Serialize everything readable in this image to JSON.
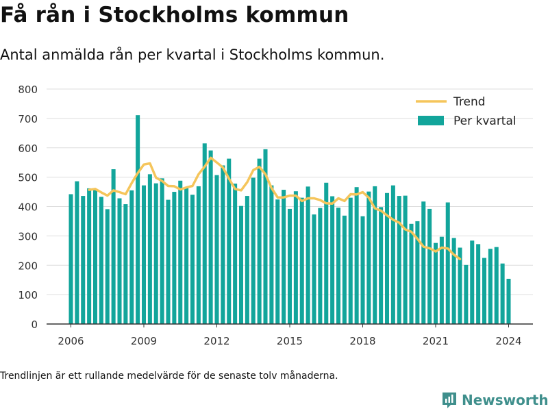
{
  "title": "Få rån i Stockholms kommun",
  "subtitle": "Antal anmälda rån per kvartal i Stockholms kommun.",
  "footnote": "Trendlinjen är ett rullande medelvärde för de senaste tolv månaderna.",
  "brand": {
    "name": "Newsworthy",
    "icon": "newsworthy-logo-icon"
  },
  "colors": {
    "bar": "#12a59b",
    "trend": "#f5c55b",
    "grid": "#dddddd",
    "axis": "#333333"
  },
  "chart_data": {
    "type": "bar",
    "xlim": [
      2005,
      2025
    ],
    "ylim": [
      0,
      800
    ],
    "xticks": [
      2006,
      2009,
      2012,
      2015,
      2018,
      2021,
      2024
    ],
    "yticks": [
      0,
      100,
      200,
      300,
      400,
      500,
      600,
      700,
      800
    ],
    "grid": true,
    "legend_position": "top-right",
    "series": [
      {
        "name": "Per kvartal",
        "type": "bar",
        "start": "2006 Q1",
        "values": [
          442,
          486,
          436,
          462,
          459,
          433,
          391,
          527,
          428,
          408,
          455,
          711,
          472,
          510,
          479,
          496,
          423,
          450,
          488,
          463,
          440,
          469,
          615,
          591,
          507,
          540,
          563,
          478,
          402,
          436,
          498,
          563,
          595,
          472,
          424,
          457,
          392,
          452,
          430,
          468,
          373,
          395,
          481,
          435,
          396,
          369,
          430,
          466,
          367,
          451,
          469,
          398,
          446,
          472,
          436,
          437,
          341,
          350,
          417,
          392,
          276,
          297,
          414,
          293,
          260,
          201,
          284,
          272,
          225,
          256,
          262,
          206,
          154
        ]
      },
      {
        "name": "Trend",
        "type": "line",
        "start": "2006 Q4",
        "values": [
          457,
          460,
          448,
          437,
          455,
          449,
          442,
          480,
          514,
          543,
          547,
          498,
          487,
          470,
          469,
          458,
          465,
          470,
          510,
          536,
          566,
          550,
          533,
          495,
          460,
          455,
          483,
          524,
          535,
          510,
          463,
          431,
          431,
          437,
          437,
          419,
          428,
          428,
          422,
          411,
          410,
          428,
          419,
          442,
          441,
          449,
          430,
          394,
          386,
          370,
          355,
          345,
          322,
          314,
          290,
          263,
          258,
          247,
          260,
          257,
          236,
          221
        ]
      }
    ]
  }
}
